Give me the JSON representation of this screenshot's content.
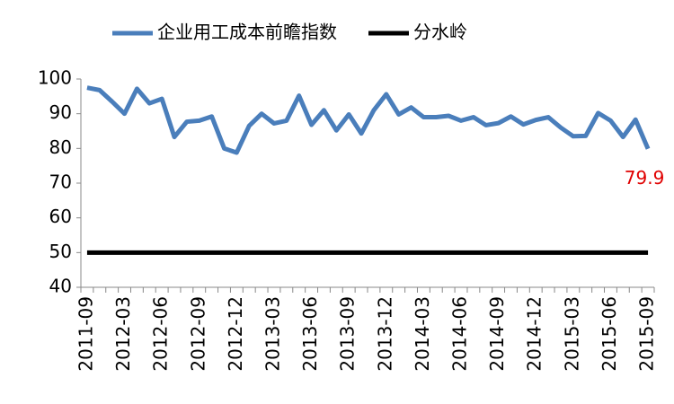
{
  "chart_data": {
    "type": "line",
    "categories": [
      "2011-09",
      null,
      null,
      "2012-03",
      null,
      null,
      "2012-06",
      null,
      null,
      "2012-09",
      null,
      null,
      "2012-12",
      null,
      null,
      "2013-03",
      null,
      null,
      "2013-06",
      null,
      null,
      "2013-09",
      null,
      null,
      "2013-12",
      null,
      null,
      "2014-03",
      null,
      null,
      "2014-06",
      null,
      null,
      "2014-09",
      null,
      null,
      "2014-12",
      null,
      null,
      "2015-03",
      null,
      null,
      "2015-06",
      null,
      null,
      "2015-09"
    ],
    "series": [
      {
        "name": "企业用工成本前瞻指数",
        "color": "#4a7ebb",
        "values": [
          97.5,
          96.8,
          93.5,
          90,
          97.2,
          93,
          94.3,
          83.3,
          87.7,
          88,
          89.2,
          80,
          78.8,
          86.5,
          90,
          87.2,
          88,
          95.2,
          86.8,
          91,
          85.2,
          89.8,
          84.3,
          91,
          95.6,
          89.8,
          91.8,
          89,
          89,
          89.4,
          88,
          89,
          86.7,
          87.3,
          89.2,
          86.9,
          88.2,
          89,
          86,
          83.5,
          83.6,
          90.2,
          88,
          83.3,
          88.3,
          79.9
        ],
        "labeled_point": 45,
        "label_color": "#e00000"
      },
      {
        "name": "分水岭",
        "color": "#000000",
        "values": [
          50,
          50,
          50,
          50,
          50,
          50,
          50,
          50,
          50,
          50,
          50,
          50,
          50,
          50,
          50,
          50,
          50,
          50,
          50,
          50,
          50,
          50,
          50,
          50,
          50,
          50,
          50,
          50,
          50,
          50,
          50,
          50,
          50,
          50,
          50,
          50,
          50,
          50,
          50,
          50,
          50,
          50,
          50,
          50,
          50,
          50
        ]
      }
    ],
    "ylim": [
      40,
      100
    ],
    "yticks": [
      40,
      50,
      60,
      70,
      80,
      90,
      100
    ],
    "grid": false,
    "legend": "top"
  }
}
